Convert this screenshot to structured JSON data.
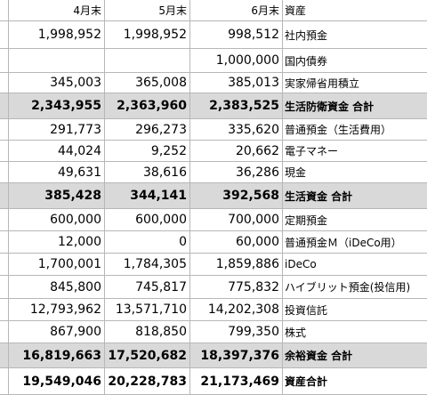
{
  "header": {
    "month1": "4月末",
    "month2": "5月末",
    "month3": "6月末",
    "asset": "資産"
  },
  "rows": [
    {
      "m4": "1,998,952",
      "m5": "1,998,952",
      "m6": "998,512",
      "label": "社内預金"
    },
    {
      "m4": "",
      "m5": "",
      "m6": "1,000,000",
      "label": "国内債券"
    },
    {
      "m4": "345,003",
      "m5": "365,008",
      "m6": "385,013",
      "label": "実家帰省用積立"
    },
    {
      "m4": "2,343,955",
      "m5": "2,363,960",
      "m6": "2,383,525",
      "label": "生活防衛資金 合計",
      "total": true
    },
    {
      "m4": "291,773",
      "m5": "296,273",
      "m6": "335,620",
      "label": "普通預金（生活費用）"
    },
    {
      "m4": "44,024",
      "m5": "9,252",
      "m6": "20,662",
      "label": "電子マネー"
    },
    {
      "m4": "49,631",
      "m5": "38,616",
      "m6": "36,286",
      "label": "現金"
    },
    {
      "m4": "385,428",
      "m5": "344,141",
      "m6": "392,568",
      "label": "生活資金 合計",
      "total": true
    },
    {
      "m4": "600,000",
      "m5": "600,000",
      "m6": "700,000",
      "label": "定期預金"
    },
    {
      "m4": "12,000",
      "m5": "0",
      "m6": "60,000",
      "label": "普通預金Ｍ（iDeCo用）"
    },
    {
      "m4": "1,700,001",
      "m5": "1,784,305",
      "m6": "1,859,886",
      "label": "iDeCo"
    },
    {
      "m4": "845,800",
      "m5": "745,817",
      "m6": "775,832",
      "label": "ハイブリット預金(投信用)"
    },
    {
      "m4": "12,793,962",
      "m5": "13,571,710",
      "m6": "14,202,308",
      "label": "投資信託"
    },
    {
      "m4": "867,900",
      "m5": "818,850",
      "m6": "799,350",
      "label": "株式"
    },
    {
      "m4": "16,819,663",
      "m5": "17,520,682",
      "m6": "18,397,376",
      "label": "余裕資金 合計",
      "total": true
    },
    {
      "m4": "19,549,046",
      "m5": "20,228,783",
      "m6": "21,173,469",
      "label": "資産合計",
      "grand": true
    }
  ]
}
